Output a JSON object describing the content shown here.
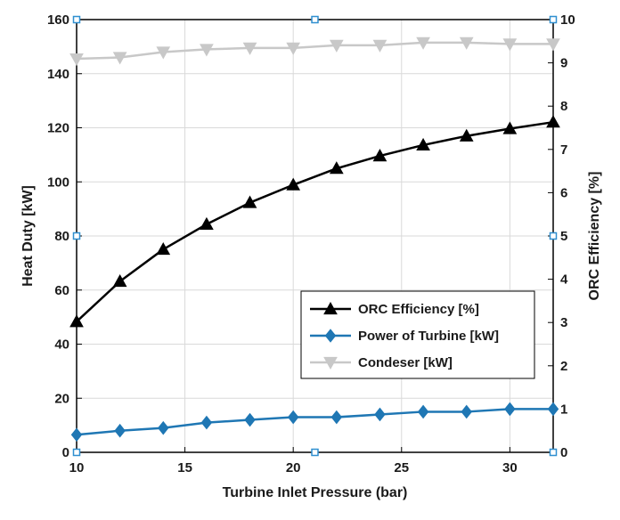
{
  "chart_data": {
    "type": "line",
    "xlabel": "Turbine Inlet Pressure (bar)",
    "ylabel_left": "Heat Duty [kW]",
    "ylabel_right": "ORC Efficiency [%]",
    "xlim": [
      10,
      32
    ],
    "ylim_left": [
      0,
      160
    ],
    "ylim_right": [
      0,
      10
    ],
    "x_ticks": [
      10,
      15,
      20,
      25,
      30
    ],
    "y_left_ticks": [
      0,
      20,
      40,
      60,
      80,
      100,
      120,
      140,
      160
    ],
    "y_right_ticks": [
      0,
      1,
      2,
      3,
      4,
      5,
      6,
      7,
      8,
      9,
      10
    ],
    "grid": true,
    "legend_position": "lower-right",
    "x": [
      10,
      12,
      14,
      16,
      18,
      20,
      22,
      24,
      26,
      28,
      30,
      32
    ],
    "series": [
      {
        "name": "ORC Efficiency [%]",
        "axis": "right",
        "marker": "triangle-up",
        "color": "#000000",
        "values": [
          3.02,
          3.95,
          4.69,
          5.27,
          5.77,
          6.18,
          6.56,
          6.85,
          7.1,
          7.31,
          7.48,
          7.63
        ]
      },
      {
        "name": "Power of Turbine [kW]",
        "axis": "left",
        "marker": "diamond",
        "color": "#1f77b4",
        "values": [
          6.5,
          8,
          9,
          11,
          12,
          13,
          13,
          14,
          15,
          15,
          16,
          16
        ]
      },
      {
        "name": "Condeser [kW]",
        "axis": "left",
        "marker": "triangle-down",
        "color": "#c8c8c8",
        "values": [
          145.5,
          146,
          148,
          149,
          149.5,
          149.5,
          150.5,
          150.5,
          151.5,
          151.5,
          151,
          151
        ]
      }
    ]
  }
}
